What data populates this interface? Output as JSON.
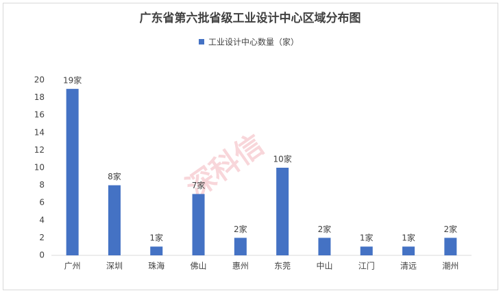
{
  "chart_data": {
    "type": "bar",
    "title": "广东省第六批省级工业设计中心区域分布图",
    "watermark": "深科信",
    "series": [
      {
        "name": "工业设计中心数量（家）",
        "color": "#4472c4",
        "values": [
          19,
          8,
          1,
          7,
          2,
          10,
          2,
          1,
          1,
          2
        ],
        "value_labels": [
          "19家",
          "8家",
          "1家",
          "7家",
          "2家",
          "10家",
          "2家",
          "1家",
          "1家",
          "2家"
        ]
      }
    ],
    "categories": [
      "广州",
      "深圳",
      "珠海",
      "佛山",
      "惠州",
      "东莞",
      "中山",
      "江门",
      "清远",
      "潮州"
    ],
    "ylim": [
      0,
      20
    ],
    "yticks": [
      0,
      2,
      4,
      6,
      8,
      10,
      12,
      14,
      16,
      18,
      20
    ],
    "grid": false,
    "legend": "top"
  }
}
